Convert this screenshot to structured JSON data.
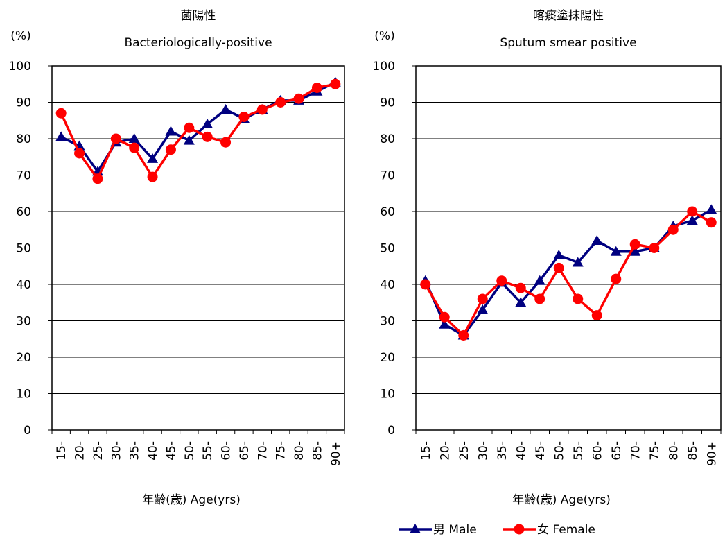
{
  "chart_data": [
    {
      "type": "line",
      "title": "菌陽性",
      "subtitle": "Bacteriologically-positive",
      "y_label": "(%)",
      "x_label": "年齢(歳)  Age(yrs)",
      "categories": [
        "15-",
        "20-",
        "25-",
        "30-",
        "35-",
        "40-",
        "45-",
        "50-",
        "55-",
        "60-",
        "65-",
        "70-",
        "75-",
        "80-",
        "85-",
        "90+"
      ],
      "series": [
        {
          "color": "#000080",
          "marker": "triangle",
          "values": [
            80.5,
            78,
            71,
            79,
            80,
            74.5,
            82,
            79.5,
            84,
            88,
            85.5,
            88,
            90.5,
            90.5,
            93,
            95.5
          ]
        },
        {
          "color": "#ff0000",
          "marker": "circle",
          "values": [
            87,
            76,
            69,
            80,
            77.5,
            69.5,
            77,
            83,
            80.5,
            79,
            86,
            88,
            90,
            91,
            94,
            95
          ]
        }
      ],
      "ylim": [
        0,
        100
      ],
      "yticks": [
        0,
        10,
        20,
        30,
        40,
        50,
        60,
        70,
        80,
        90,
        100
      ],
      "grid": true
    },
    {
      "type": "line",
      "title": "喀痰塗抹陽性",
      "subtitle": "Sputum smear positive",
      "y_label": "(%)",
      "x_label": "年齢(歳)  Age(yrs)",
      "categories": [
        "15-",
        "20-",
        "25-",
        "30-",
        "35-",
        "40-",
        "45-",
        "50-",
        "55-",
        "60-",
        "65-",
        "70-",
        "75-",
        "80-",
        "85-",
        "90+"
      ],
      "series": [
        {
          "name": "男  Male",
          "color": "#000080",
          "marker": "triangle",
          "values": [
            41,
            29,
            26,
            33,
            40.5,
            35,
            41,
            48,
            46,
            52,
            49,
            49,
            50,
            56,
            57.5,
            60.5
          ]
        },
        {
          "name": "女  Female",
          "color": "#ff0000",
          "marker": "circle",
          "values": [
            40,
            31,
            26,
            36,
            41,
            39,
            36,
            44.5,
            36,
            31.5,
            41.5,
            51,
            50,
            55,
            60,
            57
          ]
        }
      ],
      "ylim": [
        0,
        100
      ],
      "yticks": [
        0,
        10,
        20,
        30,
        40,
        50,
        60,
        70,
        80,
        90,
        100
      ],
      "grid": true,
      "legend": "bottom"
    }
  ]
}
